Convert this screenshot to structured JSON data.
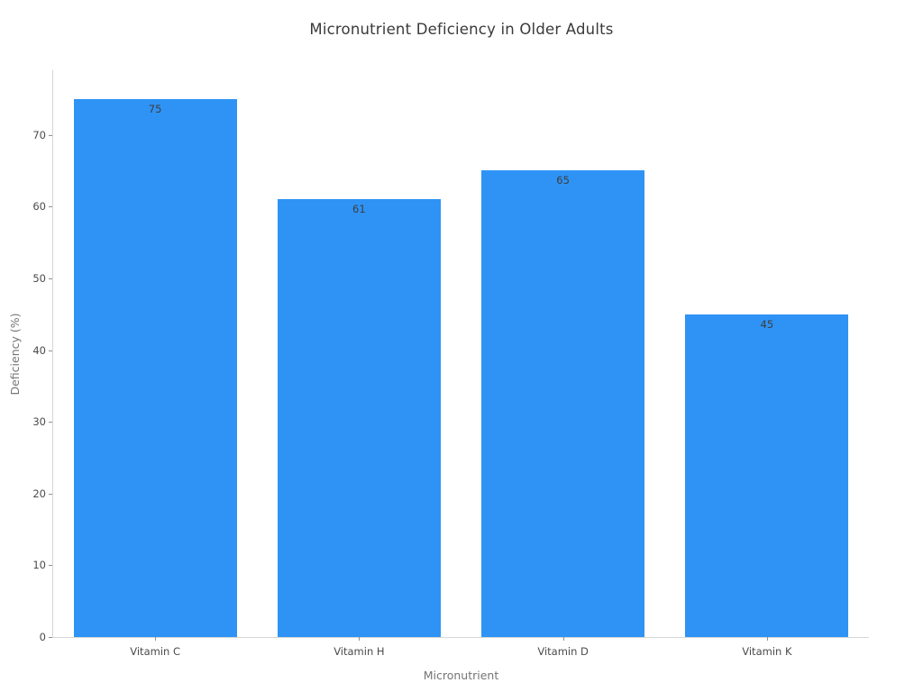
{
  "chart_data": {
    "type": "bar",
    "title": "Micronutrient Deficiency in Older Adults",
    "xlabel": "Micronutrient",
    "ylabel": "Deficiency (%)",
    "categories": [
      "Vitamin C",
      "Vitamin H",
      "Vitamin D",
      "Vitamin K"
    ],
    "values": [
      75,
      61,
      65,
      45
    ],
    "value_labels": [
      "75",
      "61",
      "65",
      "45"
    ],
    "yticks": [
      0,
      10,
      20,
      30,
      40,
      50,
      60,
      70
    ],
    "ylim": [
      0,
      79
    ],
    "grid": false,
    "legend": null,
    "bar_color": "#2e93f5",
    "value_label_color": "#3e3e3e",
    "tick_label_color": "#4b4b4b",
    "axis_title_color": "#757575",
    "title_color": "#3a3a3a",
    "spine_color": "#d6d6d6"
  }
}
